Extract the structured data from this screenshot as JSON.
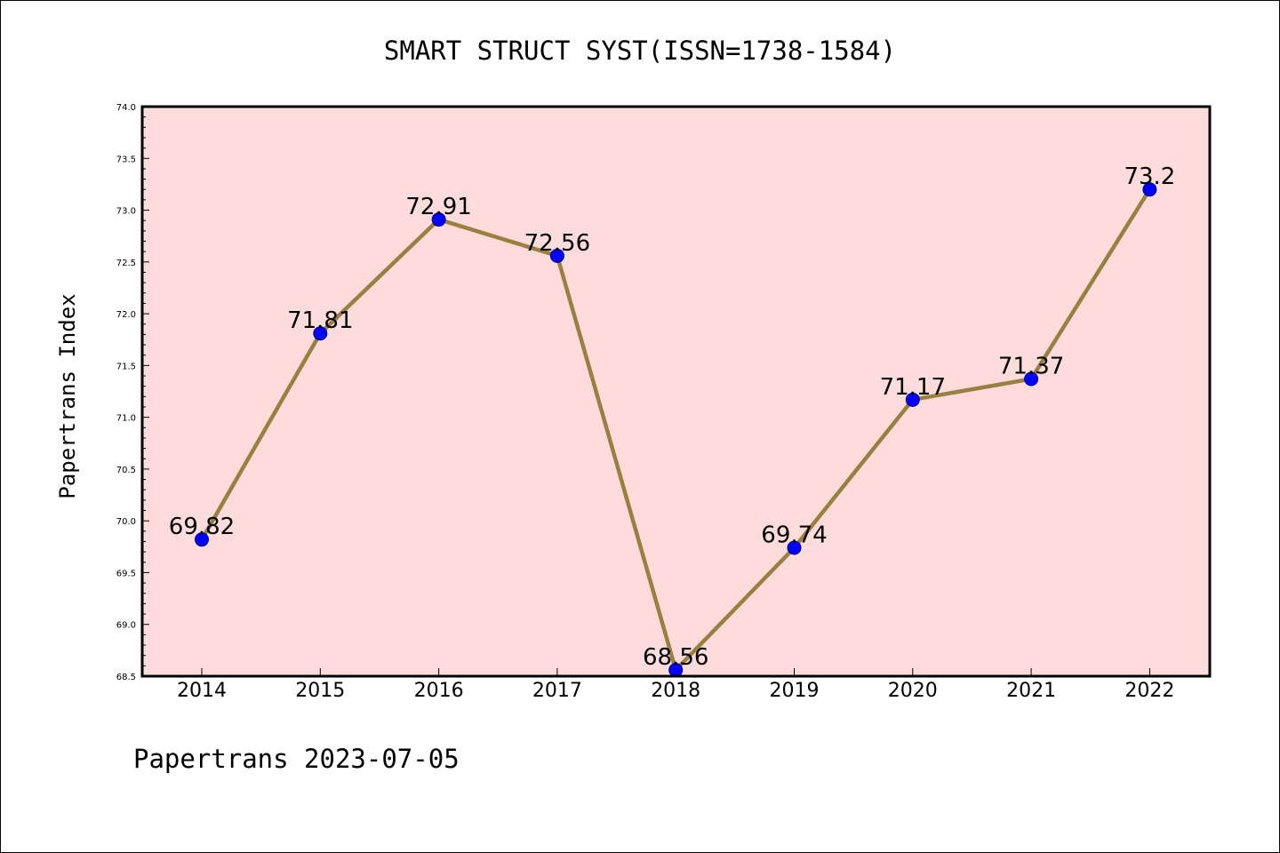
{
  "chart_data": {
    "type": "line",
    "title": "SMART STRUCT SYST(ISSN=1738-1584)",
    "xlabel": "",
    "ylabel": "Papertrans Index",
    "categories": [
      "2014",
      "2015",
      "2016",
      "2017",
      "2018",
      "2019",
      "2020",
      "2021",
      "2022"
    ],
    "series": [
      {
        "values": [
          69.82,
          71.81,
          72.91,
          72.56,
          68.56,
          69.74,
          71.17,
          71.37,
          73.2
        ],
        "labels": [
          "69.82",
          "71.81",
          "72.91",
          "72.56",
          "68.56",
          "69.74",
          "71.17",
          "71.37",
          "73.2"
        ],
        "line_color": "#9a8040",
        "marker_color": "#0000ff"
      }
    ],
    "ylim": [
      68.5,
      74.0
    ],
    "yticks": [
      "68.5",
      "69.0",
      "69.5",
      "70.0",
      "70.5",
      "71.0",
      "71.5",
      "72.0",
      "72.5",
      "73.0",
      "73.5",
      "74.0"
    ],
    "grid": false,
    "plot_background": "#ffdcdc"
  },
  "footer": {
    "text": "Papertrans 2023-07-05"
  }
}
